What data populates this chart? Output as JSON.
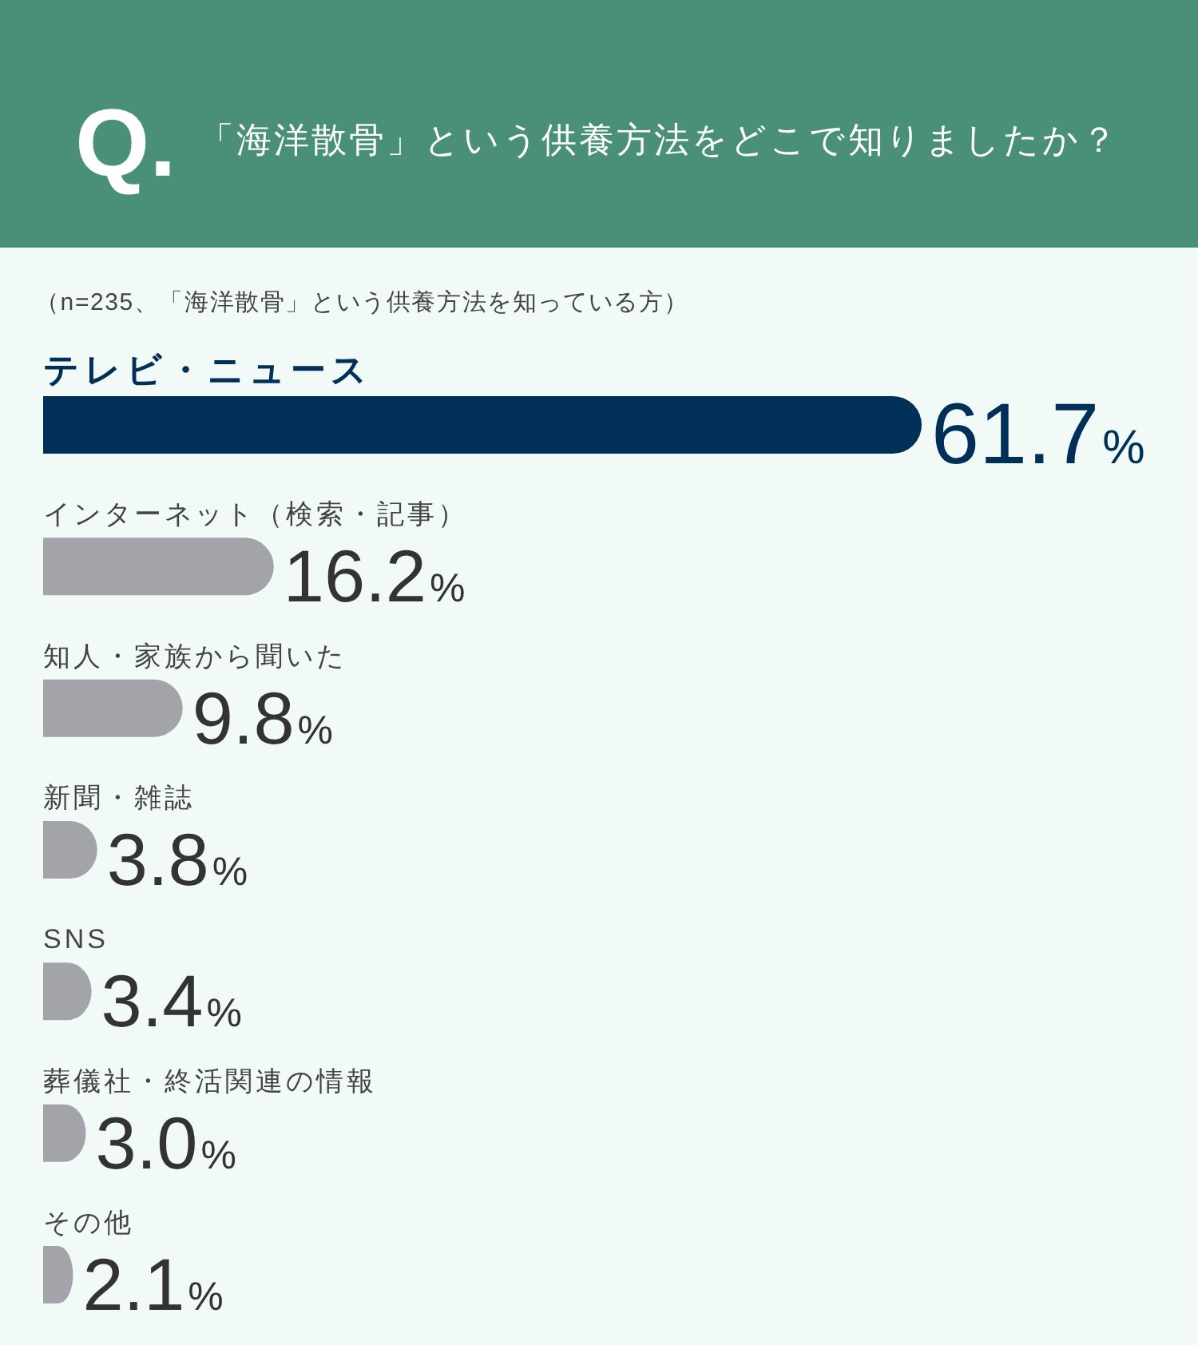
{
  "chart_data": {
    "type": "bar",
    "orientation": "horizontal",
    "title": "Q.「海洋散骨」という供養方法をどこで知りましたか？",
    "subtitle": "（n=235、「海洋散骨」という供養方法を知っている方）",
    "categories": [
      "テレビ・ニュース",
      "インターネット（検索・記事）",
      "知人・家族から聞いた",
      "新聞・雑誌",
      "SNS",
      "葬儀社・終活関連の情報",
      "その他"
    ],
    "values": [
      61.7,
      16.2,
      9.8,
      3.8,
      3.4,
      3.0,
      2.1
    ],
    "colors": [
      "#003057",
      "#a2a4aa",
      "#a2a4aa",
      "#a2a4aa",
      "#a2a4aa",
      "#a2a4aa",
      "#a2a4aa"
    ],
    "value_labels": [
      "61.7%",
      "16.2%",
      "9.8%",
      "3.8%",
      "3.4%",
      "3.0%",
      "2.1%"
    ]
  }
}
